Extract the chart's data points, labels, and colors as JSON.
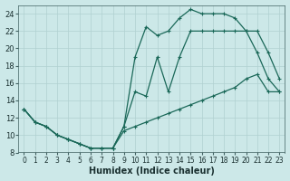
{
  "xlabel": "Humidex (Indice chaleur)",
  "bg_color": "#cce8e8",
  "line_color": "#1a6858",
  "grid_color": "#b0d0d0",
  "xlim": [
    -0.5,
    23.5
  ],
  "ylim": [
    8,
    25
  ],
  "xticks": [
    0,
    1,
    2,
    3,
    4,
    5,
    6,
    7,
    8,
    9,
    10,
    11,
    12,
    13,
    14,
    15,
    16,
    17,
    18,
    19,
    20,
    21,
    22,
    23
  ],
  "yticks": [
    8,
    10,
    12,
    14,
    16,
    18,
    20,
    22,
    24
  ],
  "line1_x": [
    0,
    1,
    2,
    3,
    4,
    5,
    6,
    7,
    8,
    9,
    10,
    11,
    12,
    13,
    14,
    15,
    16,
    17,
    18,
    19,
    20,
    21,
    22,
    23
  ],
  "line1_y": [
    13,
    11.5,
    11,
    10,
    9.5,
    9,
    8.5,
    8.5,
    8.5,
    11,
    19,
    22.5,
    21.5,
    22,
    23.5,
    24.5,
    24,
    24,
    24,
    23.5,
    22,
    19.5,
    16.5,
    15
  ],
  "line2_x": [
    0,
    1,
    2,
    3,
    4,
    5,
    6,
    7,
    8,
    9,
    10,
    11,
    12,
    13,
    14,
    15,
    16,
    17,
    18,
    19,
    20,
    21,
    22,
    23
  ],
  "line2_y": [
    13,
    11.5,
    11,
    10,
    9.5,
    9,
    8.5,
    8.5,
    8.5,
    11,
    15,
    14.5,
    19,
    15,
    19,
    22,
    22,
    22,
    22,
    22,
    22,
    22,
    19.5,
    16.5
  ],
  "line3_x": [
    0,
    1,
    2,
    3,
    4,
    5,
    6,
    7,
    8,
    9,
    10,
    11,
    12,
    13,
    14,
    15,
    16,
    17,
    18,
    19,
    20,
    21,
    22,
    23
  ],
  "line3_y": [
    13,
    11.5,
    11,
    10,
    9.5,
    9,
    8.5,
    8.5,
    8.5,
    10.5,
    11,
    11.5,
    12,
    12.5,
    13,
    13.5,
    14,
    14.5,
    15,
    15.5,
    16.5,
    17,
    15,
    15
  ]
}
